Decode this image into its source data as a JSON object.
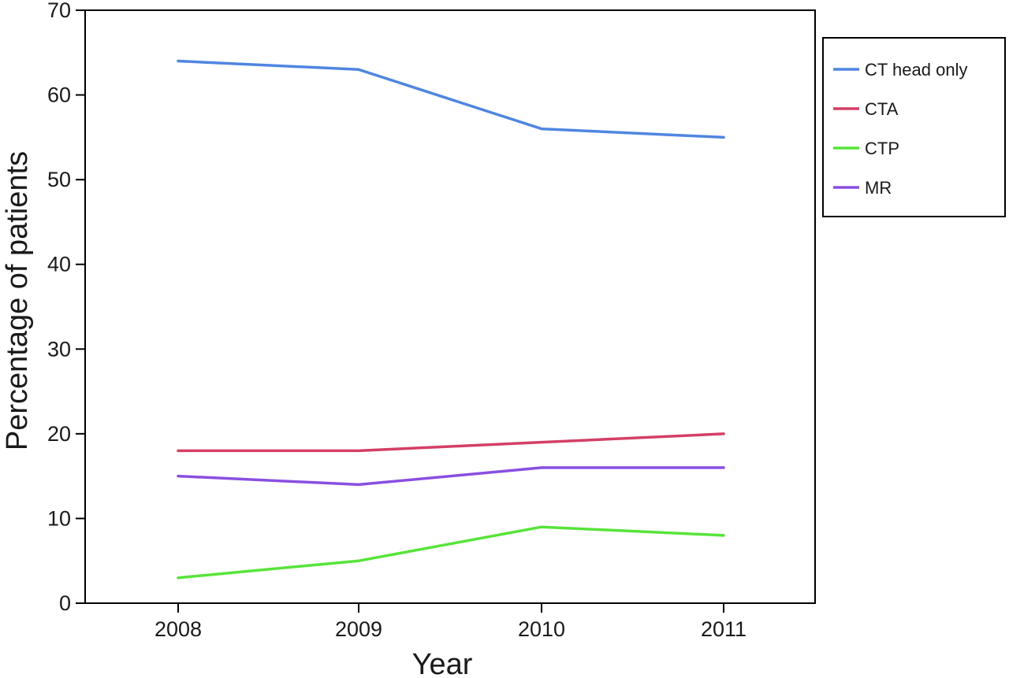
{
  "chart_data": {
    "type": "line",
    "title": "",
    "xlabel": "Year",
    "ylabel": "Percentage of patients",
    "categories": [
      "2008",
      "2009",
      "2010",
      "2011"
    ],
    "x_ticks": [
      "2008",
      "2009",
      "2010",
      "2011"
    ],
    "y_ticks": [
      "0",
      "10",
      "20",
      "30",
      "40",
      "50",
      "60",
      "70"
    ],
    "ylim": [
      0,
      70
    ],
    "grid": false,
    "legend_position": "right",
    "series": [
      {
        "name": "CT head only",
        "color": "#4f86e0",
        "values": [
          64,
          63,
          56,
          55
        ]
      },
      {
        "name": "CTA",
        "color": "#d43f66",
        "values": [
          18,
          18,
          19,
          20
        ]
      },
      {
        "name": "CTP",
        "color": "#57e43a",
        "values": [
          3,
          5,
          9,
          8
        ]
      },
      {
        "name": "MR",
        "color": "#8a4fe0",
        "values": [
          15,
          14,
          16,
          16
        ]
      }
    ]
  }
}
